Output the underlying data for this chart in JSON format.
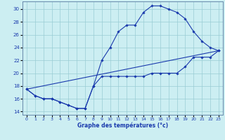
{
  "xlabel": "Graphe des températures (°c)",
  "xlim": [
    -0.5,
    23.5
  ],
  "ylim": [
    13.5,
    31.2
  ],
  "xticks": [
    0,
    1,
    2,
    3,
    4,
    5,
    6,
    7,
    8,
    9,
    10,
    11,
    12,
    13,
    14,
    15,
    16,
    17,
    18,
    19,
    20,
    21,
    22,
    23
  ],
  "yticks": [
    14,
    16,
    18,
    20,
    22,
    24,
    26,
    28,
    30
  ],
  "bg_color": "#cceef2",
  "line_color": "#1a3aad",
  "grid_color": "#99ccd4",
  "line1_x": [
    0,
    1,
    2,
    3,
    4,
    5,
    6,
    7,
    8,
    9,
    10,
    11,
    12,
    13,
    14,
    15,
    16,
    17,
    18,
    19,
    20,
    21,
    22,
    23
  ],
  "line1_y": [
    17.5,
    16.5,
    16.0,
    16.0,
    15.5,
    15.0,
    14.5,
    14.5,
    18.0,
    19.5,
    19.5,
    19.5,
    19.5,
    19.5,
    19.5,
    20.0,
    20.0,
    20.0,
    20.0,
    21.0,
    22.5,
    22.5,
    22.5,
    23.5
  ],
  "line2_x": [
    0,
    1,
    2,
    3,
    4,
    5,
    6,
    7,
    8,
    9,
    10,
    11,
    12,
    13,
    14,
    15,
    16,
    17,
    18,
    19,
    20,
    21,
    22,
    23
  ],
  "line2_y": [
    17.5,
    16.5,
    16.0,
    16.0,
    15.5,
    15.0,
    14.5,
    14.5,
    18.0,
    22.0,
    24.0,
    26.5,
    27.5,
    27.5,
    29.5,
    30.5,
    30.5,
    30.0,
    29.5,
    28.5,
    26.5,
    25.0,
    24.0,
    23.5
  ],
  "line3_x": [
    0,
    23
  ],
  "line3_y": [
    17.5,
    23.5
  ]
}
